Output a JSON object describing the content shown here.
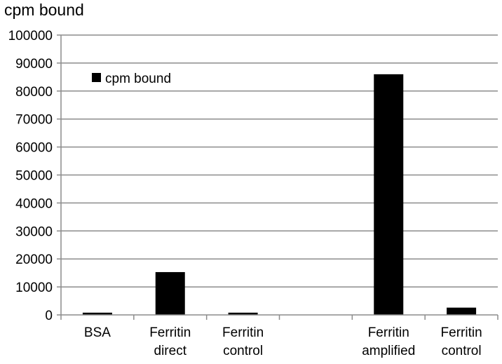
{
  "chart_data": {
    "type": "bar",
    "title": "cpm bound",
    "xlabel": "",
    "ylabel": "",
    "categories": [
      [
        "BSA"
      ],
      [
        "Ferritin",
        "direct"
      ],
      [
        "Ferritin",
        "control"
      ],
      [],
      [
        "Ferritin",
        "amplified"
      ],
      [
        "Ferritin",
        "control"
      ]
    ],
    "series": [
      {
        "name": "cpm bound",
        "color": "#000000",
        "values": [
          800,
          15300,
          800,
          null,
          86000,
          2600
        ]
      }
    ],
    "ylim": [
      0,
      100000
    ],
    "yticks": [
      "0",
      "10000",
      "20000",
      "30000",
      "40000",
      "50000",
      "60000",
      "70000",
      "80000",
      "90000",
      "100000"
    ],
    "grid": true,
    "legend": "top-left"
  }
}
